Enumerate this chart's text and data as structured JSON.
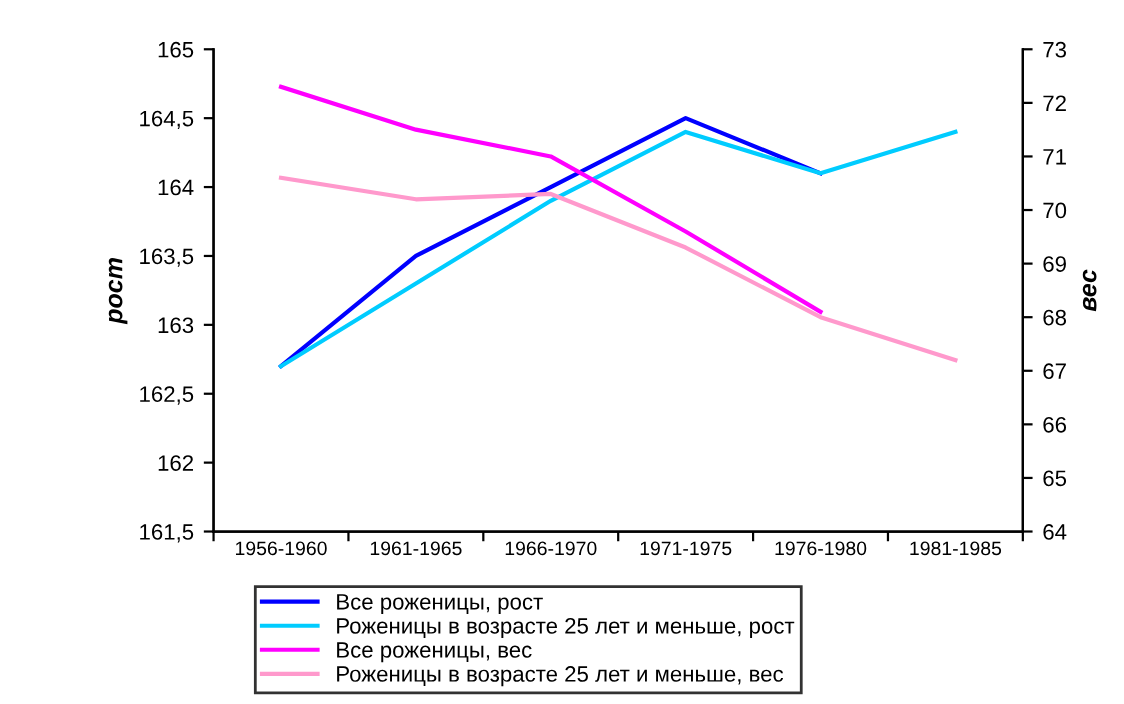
{
  "chart_data": {
    "type": "line",
    "ylabel": "рост",
    "y2label": "вес",
    "categories": [
      "1956-1960",
      "1961-1965",
      "1966-1970",
      "1971-1975",
      "1976-1980",
      "1981-1985"
    ],
    "ylim": [
      161.5,
      165
    ],
    "yticks": [
      {
        "value": 161.5,
        "label": "161,5"
      },
      162,
      {
        "value": 162.5,
        "label": "162,5"
      },
      163,
      {
        "value": 163.5,
        "label": "163,5"
      },
      164,
      {
        "value": 164.5,
        "label": "164,5"
      },
      165
    ],
    "y2lim": [
      64,
      73
    ],
    "y2ticks": [
      64,
      65,
      66,
      67,
      68,
      69,
      70,
      71,
      72,
      73
    ],
    "series": [
      {
        "name": "Все роженицы, рост",
        "color": "#0000ff",
        "values": [
          162.7,
          163.5,
          164.0,
          164.5,
          164.1,
          null
        ]
      },
      {
        "name": "Роженицы в возрасте 25 лет и меньше, рост",
        "color": "#00ccff",
        "values": [
          162.7,
          163.3,
          163.9,
          164.4,
          164.1,
          164.4
        ]
      },
      {
        "name": "Все роженицы, вес",
        "color": "#ff00ff",
        "axis": "y2",
        "values": [
          72.3,
          71.5,
          71.0,
          69.6,
          68.1,
          null
        ]
      },
      {
        "name": "Роженицы в возрасте 25 лет и меньше, вес",
        "color": "#ff99cc",
        "axis": "y2",
        "values": [
          70.6,
          70.2,
          70.3,
          69.3,
          68.0,
          67.2
        ]
      }
    ],
    "legend": "bottom",
    "grid": false,
    "marker": "none",
    "line_style": "solid"
  }
}
